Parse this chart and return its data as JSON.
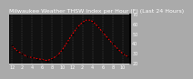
{
  "title": "Milwaukee Weather THSW Index per Hour (F) (Last 24 Hours)",
  "bg_color": "#888888",
  "plot_bg_color": "#111111",
  "line_color": "#ff0000",
  "marker_color": "#000000",
  "grid_color": "#888888",
  "text_color": "#ffffff",
  "spine_color": "#ffffff",
  "x_values": [
    0,
    1,
    2,
    3,
    4,
    5,
    6,
    7,
    8,
    9,
    10,
    11,
    12,
    13,
    14,
    15,
    16,
    17,
    18,
    19,
    20,
    21,
    22,
    23
  ],
  "y_values": [
    38,
    33,
    30,
    27,
    26,
    25,
    24,
    23,
    25,
    28,
    34,
    42,
    50,
    57,
    62,
    65,
    63,
    58,
    52,
    46,
    40,
    35,
    30,
    27
  ],
  "ylim": [
    20,
    70
  ],
  "xlim": [
    -0.5,
    23.5
  ],
  "ytick_values": [
    70,
    60,
    50,
    40,
    30,
    20
  ],
  "ytick_labels": [
    "70",
    "60",
    "50",
    "40",
    "30",
    "20"
  ],
  "xtick_values": [
    0,
    2,
    4,
    6,
    8,
    10,
    12,
    14,
    16,
    18,
    20,
    22
  ],
  "xtick_labels": [
    "12",
    "2",
    "4",
    "6",
    "8",
    "10",
    "12",
    "2",
    "4",
    "6",
    "8",
    "10"
  ],
  "title_fontsize": 4.5,
  "tick_fontsize": 3.5,
  "grid_hours": [
    0,
    2,
    4,
    6,
    8,
    10,
    12,
    14,
    16,
    18,
    20,
    22
  ],
  "line_width": 0.7,
  "marker_size": 2.0
}
